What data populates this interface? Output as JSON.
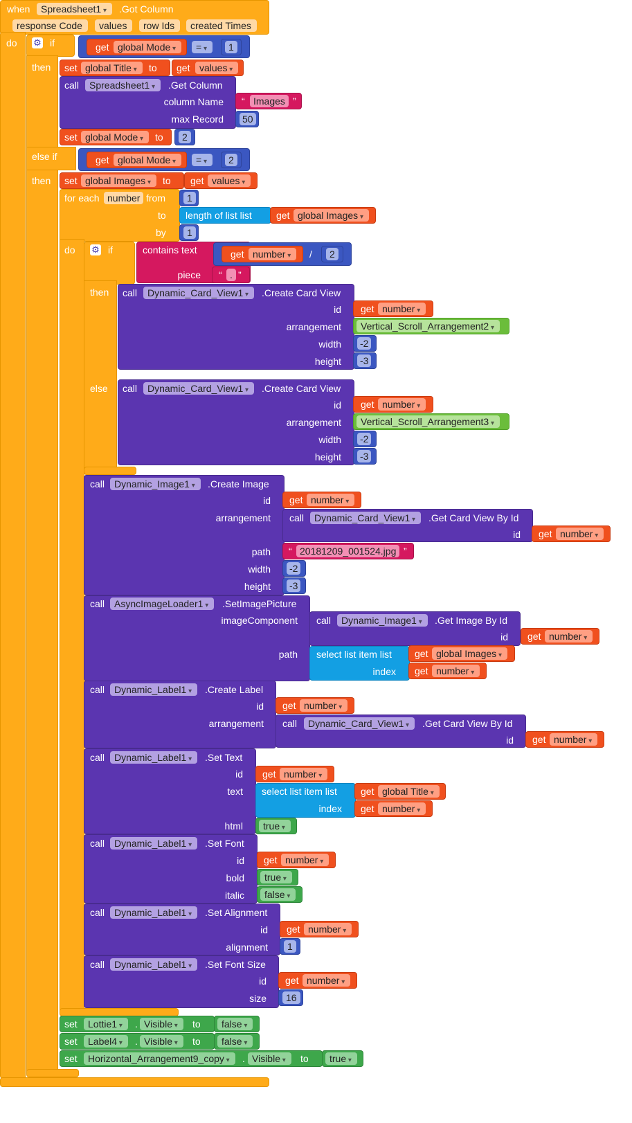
{
  "tokens": {
    "when": "when",
    "do": "do",
    "if": "if",
    "then": "then",
    "else_if": "else if",
    "else": "else",
    "get": "get",
    "set": "set",
    "to": "to",
    "call": "call",
    "dot": ".",
    "for_each": "for each",
    "from": "from",
    "by": "by",
    "quote_open": "“",
    "quote_close": "”"
  },
  "event": {
    "component": "Spreadsheet1",
    "method": ".Got Column",
    "params": [
      "response Code",
      "values",
      "row Ids",
      "created Times"
    ]
  },
  "if1": {
    "var": "global Mode",
    "op": "=",
    "value": "1"
  },
  "set_title": {
    "var": "global Title",
    "get": "values"
  },
  "get_column": {
    "component": "Spreadsheet1",
    "method": ".Get Column",
    "arg_column": "column Name",
    "column_value": "Images",
    "arg_max": "max Record",
    "max_value": "50"
  },
  "set_mode": {
    "var": "global Mode",
    "value": "2"
  },
  "elseif1": {
    "var": "global Mode",
    "op": "=",
    "value": "2"
  },
  "set_images": {
    "var": "global Images",
    "get": "values"
  },
  "foreach": {
    "var": "number",
    "from": "1",
    "length_label": "length of list  list",
    "list_var": "global Images",
    "by": "1"
  },
  "if2": {
    "contains": "contains  text",
    "piece_label": "piece",
    "get": "number",
    "op": "/",
    "divisor": "2",
    "piece_value": "."
  },
  "card_then": {
    "component": "Dynamic_Card_View1",
    "method": ".Create Card View",
    "id_label": "id",
    "id_get": "number",
    "arr_label": "arrangement",
    "arrangement": "Vertical_Scroll_Arrangement2",
    "width_label": "width",
    "width": "-2",
    "height_label": "height",
    "height": "-3"
  },
  "card_else": {
    "component": "Dynamic_Card_View1",
    "method": ".Create Card View",
    "id_label": "id",
    "id_get": "number",
    "arr_label": "arrangement",
    "arrangement": "Vertical_Scroll_Arrangement3",
    "width_label": "width",
    "width": "-2",
    "height_label": "height",
    "height": "-3"
  },
  "create_image": {
    "component": "Dynamic_Image1",
    "method": ".Create Image",
    "id_label": "id",
    "id_get": "number",
    "arr_label": "arrangement",
    "card_component": "Dynamic_Card_View1",
    "card_method": ".Get Card View By Id",
    "card_id_label": "id",
    "card_id_get": "number",
    "path_label": "path",
    "path": "20181209_001524.jpg",
    "width_label": "width",
    "width": "-2",
    "height_label": "height",
    "height": "-3"
  },
  "set_picture": {
    "component": "AsyncImageLoader1",
    "method": ".SetImagePicture",
    "comp_label": "imageComponent",
    "img_component": "Dynamic_Image1",
    "img_method": ".Get Image By Id",
    "img_id_label": "id",
    "img_id_get": "number",
    "path_label": "path",
    "select": "select list item  list",
    "list_var": "global Images",
    "index_label": "index",
    "index_get": "number"
  },
  "create_label": {
    "component": "Dynamic_Label1",
    "method": ".Create Label",
    "id_label": "id",
    "id_get": "number",
    "arr_label": "arrangement",
    "card_component": "Dynamic_Card_View1",
    "card_method": ".Get Card View By Id",
    "card_id_label": "id",
    "card_id_get": "number"
  },
  "set_text": {
    "component": "Dynamic_Label1",
    "method": ".Set Text",
    "id_label": "id",
    "id_get": "number",
    "text_label": "text",
    "select": "select list item  list",
    "list_var": "global Title",
    "index_label": "index",
    "index_get": "number",
    "html_label": "html",
    "html": "true"
  },
  "set_font": {
    "component": "Dynamic_Label1",
    "method": ".Set Font",
    "id_label": "id",
    "id_get": "number",
    "bold_label": "bold",
    "bold": "true",
    "italic_label": "italic",
    "italic": "false"
  },
  "set_align": {
    "component": "Dynamic_Label1",
    "method": ".Set Alignment",
    "id_label": "id",
    "id_get": "number",
    "align_label": "alignment",
    "align": "1"
  },
  "set_size": {
    "component": "Dynamic_Label1",
    "method": ".Set Font Size",
    "id_label": "id",
    "id_get": "number",
    "size_label": "size",
    "size": "16"
  },
  "set_lottie": {
    "component": "Lottie1",
    "prop": "Visible",
    "value": "false"
  },
  "set_label4": {
    "component": "Label4",
    "prop": "Visible",
    "value": "false"
  },
  "set_harr": {
    "component": "Horizontal_Arrangement9_copy",
    "prop": "Visible",
    "value": "true"
  }
}
